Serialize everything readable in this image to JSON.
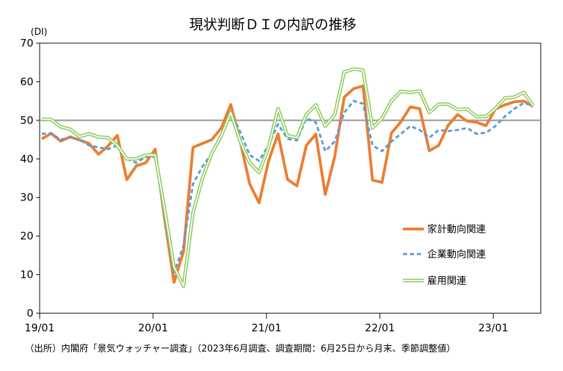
{
  "chart_data": {
    "type": "line",
    "title": "現状判断ＤＩの内訳の推移",
    "ylabel": "(DI)",
    "xlabel": "",
    "ylim": [
      0,
      70
    ],
    "yticks": [
      0,
      10,
      20,
      30,
      40,
      50,
      60,
      70
    ],
    "xtick_labels": [
      "19/01",
      "20/01",
      "21/01",
      "22/01",
      "23/01"
    ],
    "x_start": "2019-01",
    "reference_line": 50,
    "legend_position": "right",
    "source": "（出所）内閣府「景気ウォッチャー調査」（2023年6月調査、調査期間：6月25日から月末、季節調整値）",
    "series": [
      {
        "name": "家計動向関連",
        "color": "#ED7D31",
        "style": "solid",
        "values": [
          45.2,
          46.6,
          44.6,
          45.7,
          44.9,
          44.0,
          41.2,
          43.3,
          46.1,
          34.6,
          38.2,
          39.0,
          42.5,
          24.5,
          8.0,
          16.0,
          43.0,
          44.0,
          45.0,
          48.0,
          54.1,
          44.5,
          33.5,
          28.6,
          39.5,
          46.5,
          34.7,
          33.0,
          43.5,
          46.4,
          30.8,
          40.6,
          56.0,
          58.2,
          58.9,
          34.5,
          33.9,
          46.7,
          49.6,
          53.5,
          53.0,
          42.1,
          43.5,
          48.7,
          51.5,
          49.8,
          49.5,
          48.6,
          52.9,
          54.0,
          54.8,
          55.0,
          53.6
        ]
      },
      {
        "name": "企業動向関連",
        "color": "#5B9BD5",
        "style": "dashed",
        "values": [
          46.5,
          46.6,
          45.0,
          45.6,
          45.0,
          43.5,
          43.0,
          42.5,
          43.5,
          40.0,
          39.0,
          40.5,
          40.5,
          25.0,
          10.5,
          17.5,
          33.5,
          38.0,
          41.5,
          46.5,
          52.3,
          47.0,
          41.0,
          39.5,
          43.5,
          49.0,
          45.2,
          44.8,
          50.5,
          49.5,
          42.0,
          44.5,
          52.0,
          55.0,
          54.3,
          43.5,
          42.0,
          44.5,
          46.5,
          48.5,
          47.5,
          45.5,
          47.5,
          47.2,
          47.5,
          48.0,
          46.5,
          46.8,
          48.5,
          51.0,
          53.0,
          54.5,
          53.8
        ]
      },
      {
        "name": "雇用関連",
        "color": "#8CCB5E",
        "style": "double",
        "values": [
          50.3,
          50.2,
          48.3,
          47.7,
          45.8,
          46.5,
          45.7,
          45.5,
          43.5,
          40.0,
          40.0,
          41.0,
          41.0,
          27.0,
          12.0,
          7.0,
          26.0,
          35.0,
          41.5,
          46.0,
          52.0,
          44.5,
          39.0,
          36.5,
          43.0,
          53.0,
          46.0,
          45.5,
          51.5,
          54.0,
          48.5,
          51.5,
          62.5,
          63.3,
          63.0,
          48.0,
          50.5,
          55.0,
          57.5,
          57.2,
          57.6,
          52.0,
          54.2,
          54.2,
          52.8,
          52.9,
          51.0,
          51.0,
          53.0,
          55.8,
          56.0,
          57.2,
          53.8
        ]
      }
    ]
  }
}
